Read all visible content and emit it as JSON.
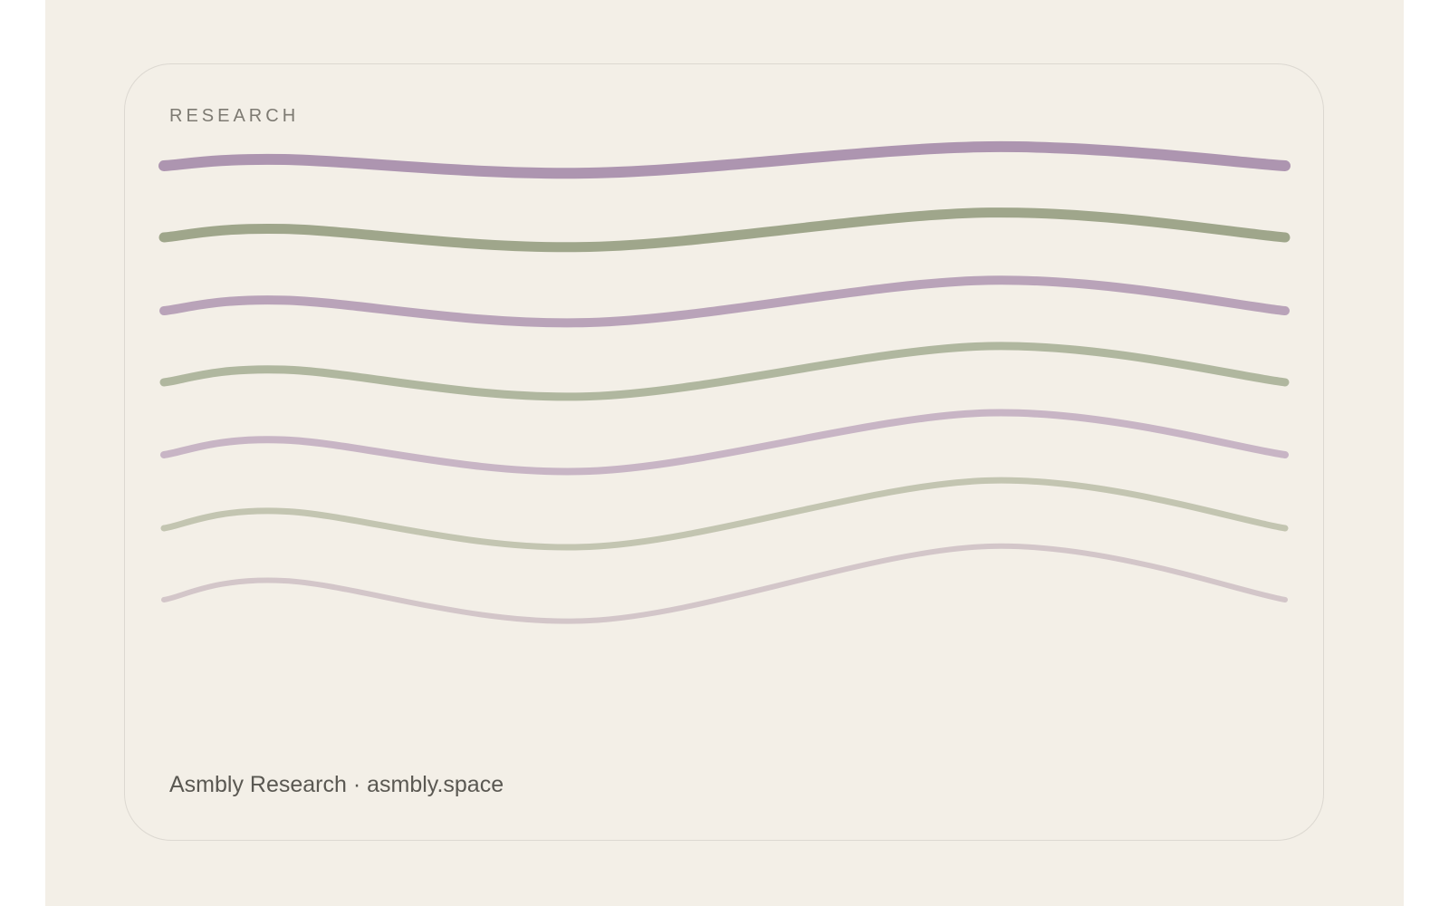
{
  "card": {
    "label": "RESEARCH",
    "footer": "Asmbly Research · asmbly.space"
  }
}
